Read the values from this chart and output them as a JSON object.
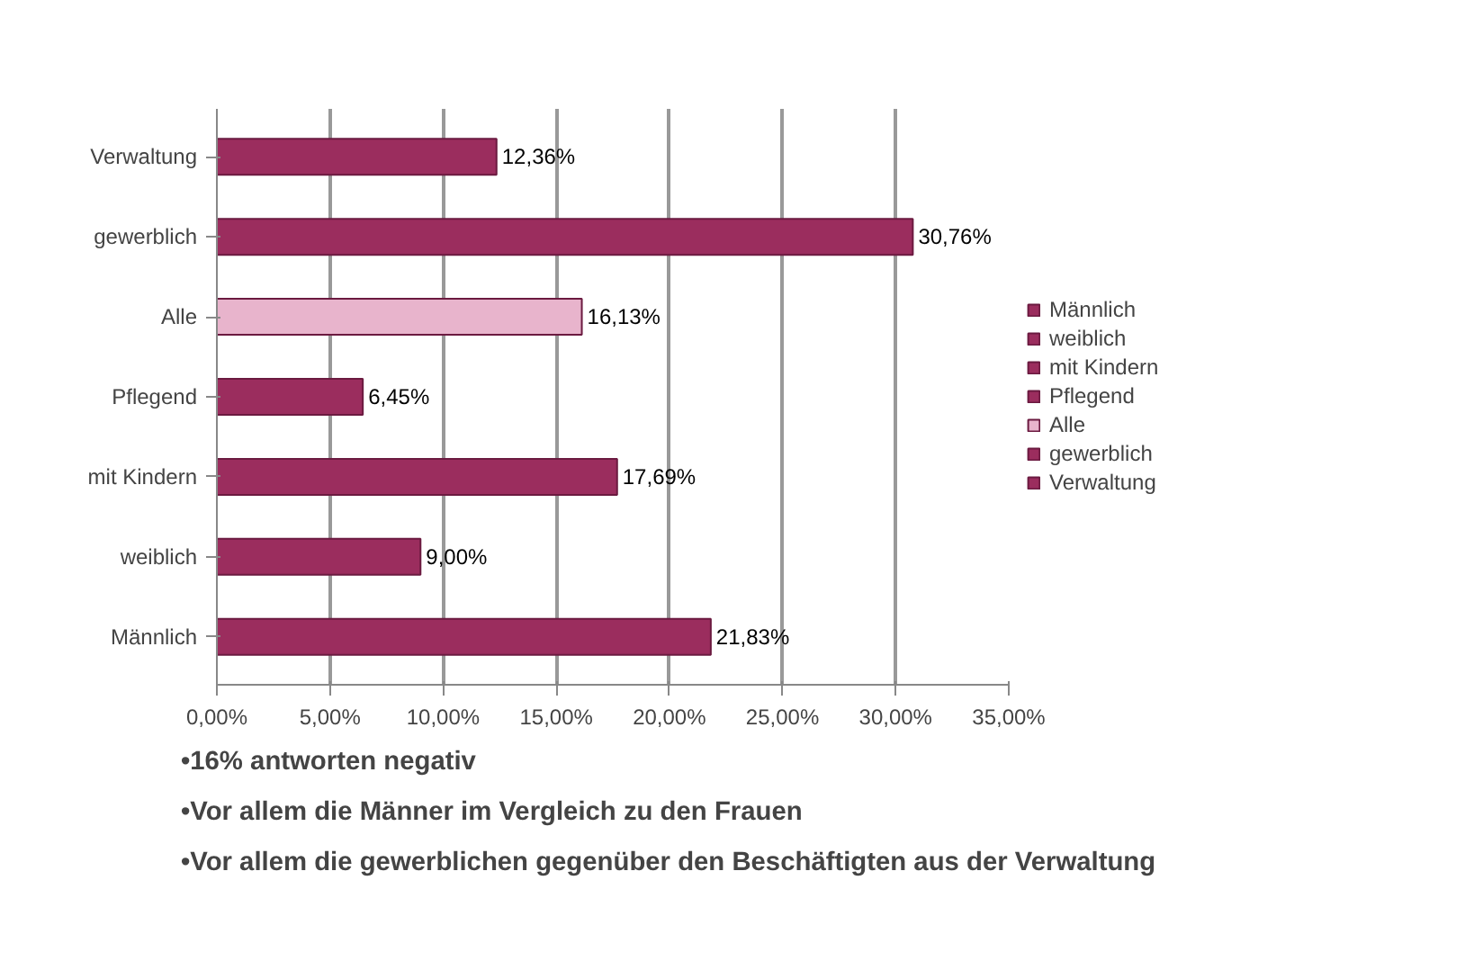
{
  "chart_data": {
    "type": "bar",
    "orientation": "horizontal",
    "categories": [
      "Verwaltung",
      "gewerblich",
      "Alle",
      "Pflegend",
      "mit Kindern",
      "weiblich",
      "Männlich"
    ],
    "series": [
      {
        "name": "Männlich",
        "color": "#9b2d5e",
        "values": [
          null,
          null,
          null,
          null,
          null,
          null,
          21.83
        ],
        "value_labels": [
          null,
          null,
          null,
          null,
          null,
          null,
          "21,83%"
        ]
      },
      {
        "name": "weiblich",
        "color": "#9b2d5e",
        "values": [
          null,
          null,
          null,
          null,
          null,
          9.0,
          null
        ],
        "value_labels": [
          null,
          null,
          null,
          null,
          null,
          "9,00%",
          null
        ]
      },
      {
        "name": "mit Kindern",
        "color": "#9b2d5e",
        "values": [
          null,
          null,
          null,
          null,
          17.69,
          null,
          null
        ],
        "value_labels": [
          null,
          null,
          null,
          null,
          "17,69%",
          null,
          null
        ]
      },
      {
        "name": "Pflegend",
        "color": "#9b2d5e",
        "values": [
          null,
          null,
          null,
          6.45,
          null,
          null,
          null
        ],
        "value_labels": [
          null,
          null,
          null,
          "6,45%",
          null,
          null,
          null
        ]
      },
      {
        "name": "Alle",
        "color": "#e8b4cc",
        "values": [
          null,
          null,
          16.13,
          null,
          null,
          null,
          null
        ],
        "value_labels": [
          null,
          null,
          "16,13%",
          null,
          null,
          null,
          null
        ]
      },
      {
        "name": "gewerblich",
        "color": "#9b2d5e",
        "values": [
          null,
          30.76,
          null,
          null,
          null,
          null,
          null
        ],
        "value_labels": [
          null,
          "30,76%",
          null,
          null,
          null,
          null,
          null
        ]
      },
      {
        "name": "Verwaltung",
        "color": "#9b2d5e",
        "values": [
          12.36,
          null,
          null,
          null,
          null,
          null,
          null
        ],
        "value_labels": [
          "12,36%",
          null,
          null,
          null,
          null,
          null,
          null
        ]
      }
    ],
    "xlim": [
      0,
      35
    ],
    "xticks": [
      {
        "value": 0,
        "label": "0,00%"
      },
      {
        "value": 5,
        "label": "5,00%"
      },
      {
        "value": 10,
        "label": "10,00%"
      },
      {
        "value": 15,
        "label": "15,00%"
      },
      {
        "value": 20,
        "label": "20,00%"
      },
      {
        "value": 25,
        "label": "25,00%"
      },
      {
        "value": 30,
        "label": "30,00%"
      },
      {
        "value": 35,
        "label": "35,00%"
      }
    ],
    "grid": "x",
    "legend": "right",
    "annotations": [
      "•16% antworten negativ",
      "•Vor allem die Männer im Vergleich zu den Frauen",
      "•Vor allem die gewerblichen gegenüber den Beschäftigten aus der Verwaltung"
    ]
  }
}
